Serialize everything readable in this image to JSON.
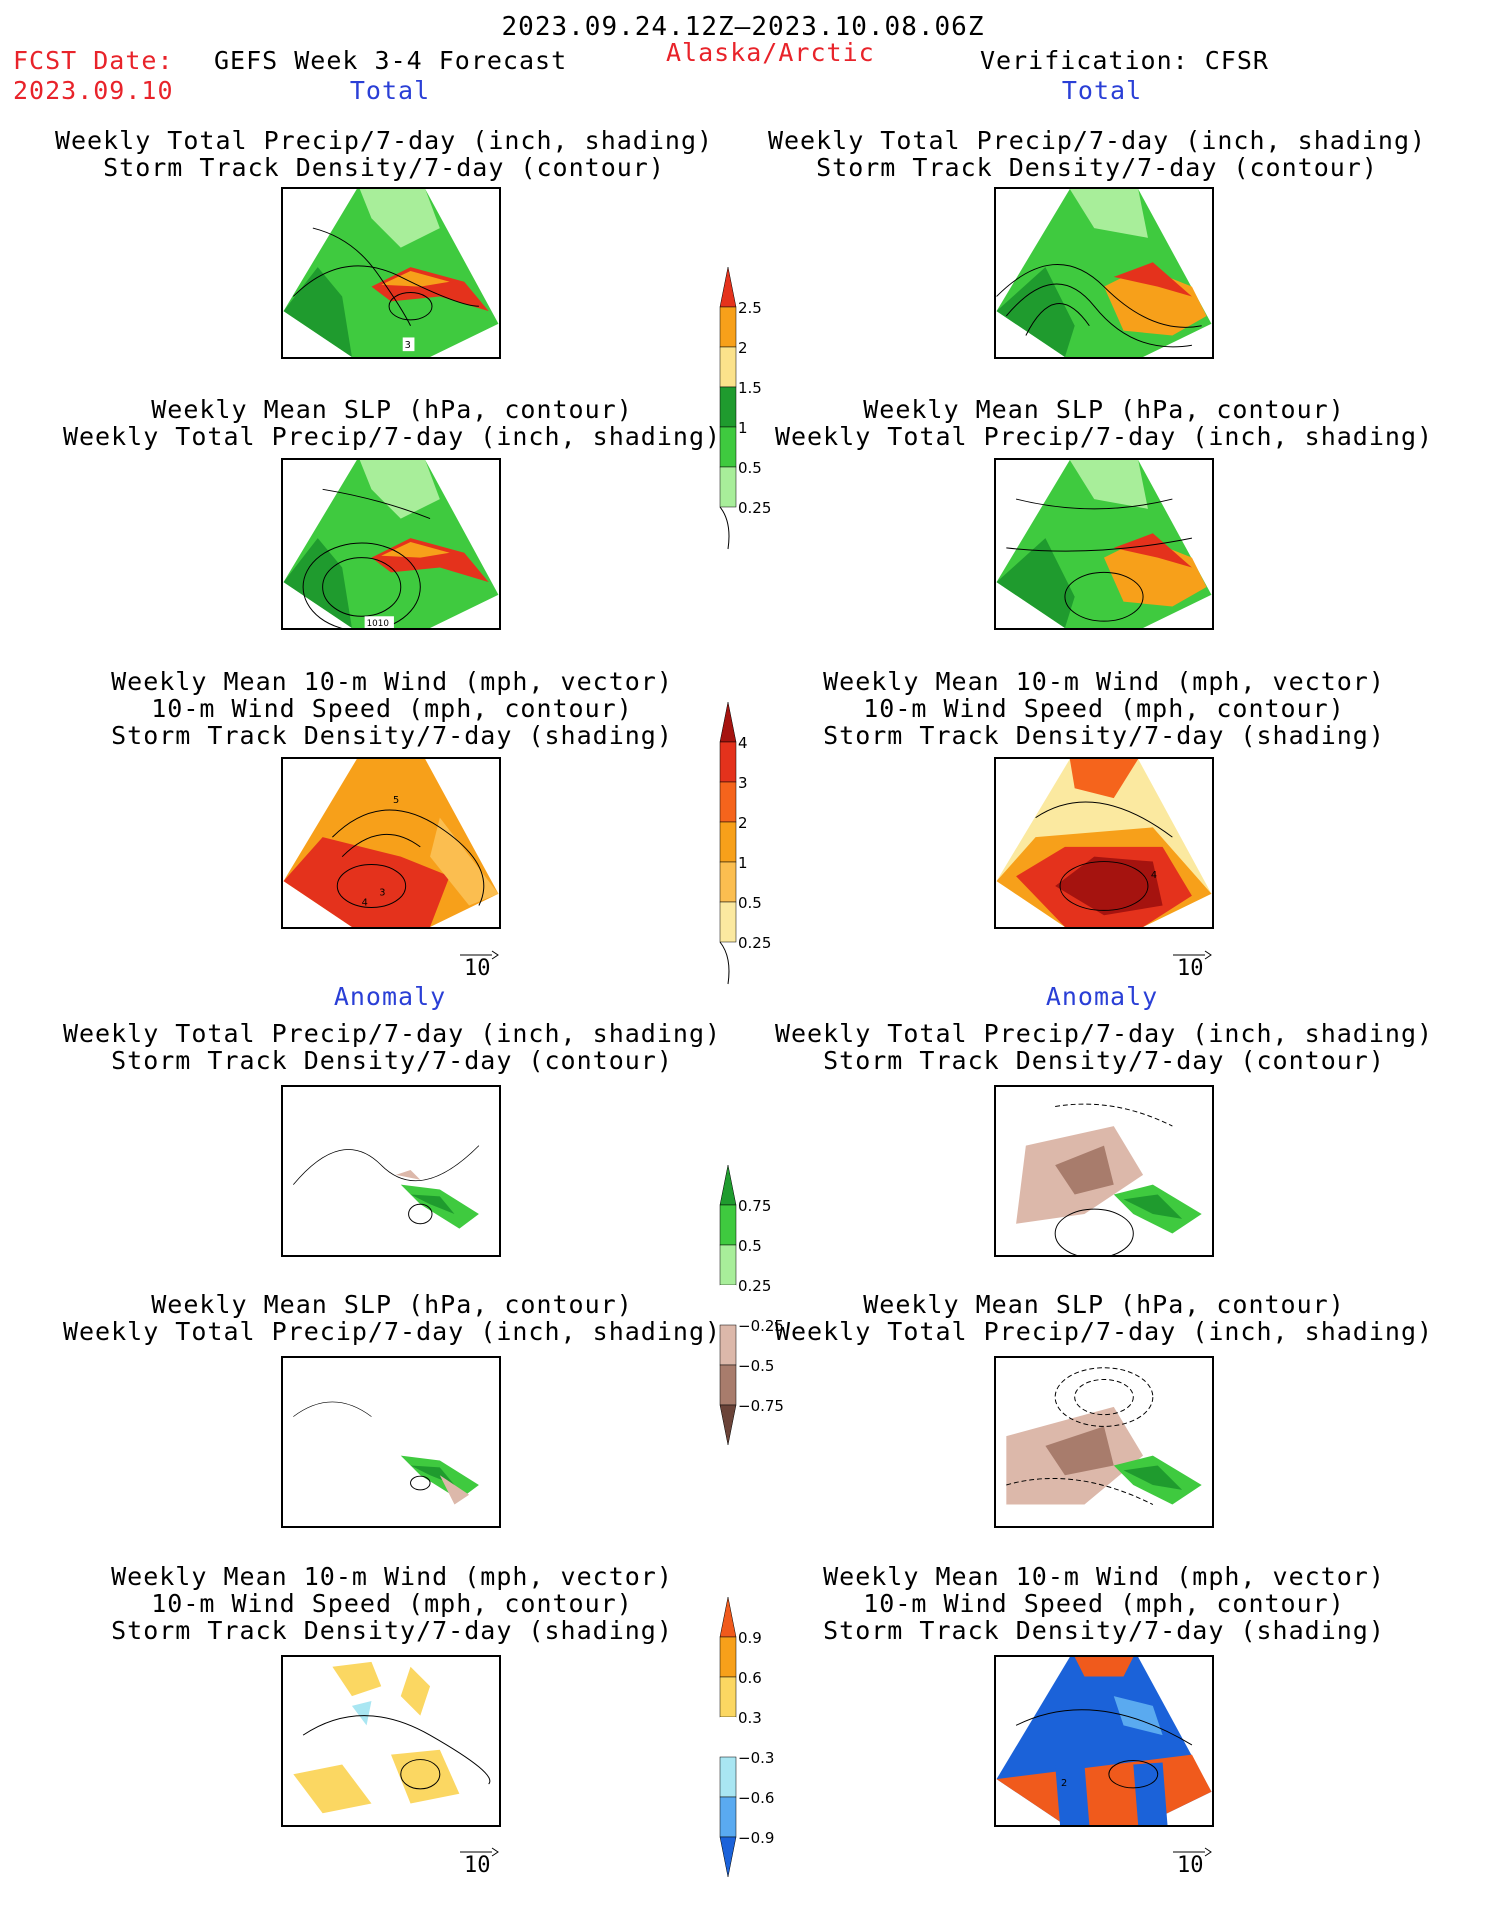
{
  "header": {
    "date_range": "2023.09.24.12Z–2023.10.08.06Z",
    "fcst_date_label": "FCST Date:",
    "fcst_date_value": "2023.09.10",
    "model_title": "GEFS Week 3-4 Forecast",
    "region": "Alaska/Arctic",
    "verification": "Verification: CFSR"
  },
  "sections": {
    "total_left": "Total",
    "total_right": "Total",
    "anomaly_left": "Anomaly",
    "anomaly_right": "Anomaly"
  },
  "panel_titles": {
    "precip_storm": [
      "Weekly Total Precip/7-day (inch, shading)",
      "Storm Track Density/7-day (contour)"
    ],
    "slp_precip": [
      "Weekly Mean SLP (hPa, contour)",
      "Weekly Total Precip/7-day (inch, shading)"
    ],
    "wind": [
      "Weekly Mean 10-m Wind (mph, vector)",
      "10-m Wind Speed (mph, contour)",
      "Storm Track Density/7-day (shading)"
    ]
  },
  "map_labels": {
    "t1_left": "3",
    "t2_left": "1010",
    "t3_left_a": "5",
    "t3_left_b": "3",
    "t3_left_c": "4",
    "t3_right": "4",
    "a3_right": "2"
  },
  "vector_ref": "10",
  "colorbars": {
    "precip_total": {
      "labels": [
        "2.5",
        "2",
        "1.5",
        "1",
        "0.5",
        "0.25"
      ],
      "colors": [
        "#e4321c",
        "#f7a01a",
        "#fbe28b",
        "#1f9b2e",
        "#3fca3f",
        "#a8ee9a"
      ]
    },
    "storm_total": {
      "labels": [
        "4",
        "3",
        "2",
        "1",
        "0.5",
        "0.25"
      ],
      "colors": [
        "#a5130f",
        "#e4321c",
        "#f5641c",
        "#f7a01a",
        "#fbbe50",
        "#fbe9a0"
      ]
    },
    "precip_anom": {
      "labels": [
        "0.75",
        "0.5",
        "0.25",
        "−0.25",
        "−0.5",
        "−0.75"
      ],
      "colors": [
        "#1f9b2e",
        "#3fca3f",
        "#a8ee9a",
        "#ffffff",
        "#dcb8aa",
        "#a87c6c",
        "#6a4338"
      ]
    },
    "storm_anom": {
      "labels": [
        "0.9",
        "0.6",
        "0.3",
        "−0.3",
        "−0.6",
        "−0.9"
      ],
      "colors": [
        "#f05a1c",
        "#f7a01a",
        "#fbd762",
        "#ffffff",
        "#a9e6f2",
        "#5aaaf0",
        "#1b62d9"
      ]
    }
  }
}
